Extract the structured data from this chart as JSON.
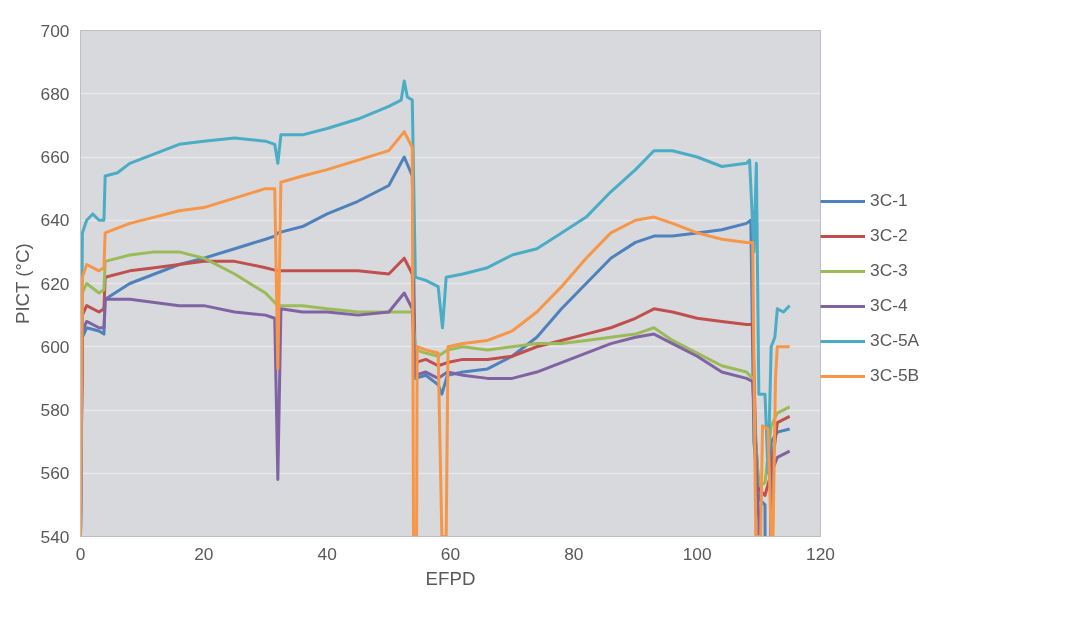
{
  "chart_data": {
    "type": "line",
    "xlabel": "EFPD",
    "ylabel": "PICT (°C)",
    "xlim": [
      0,
      120
    ],
    "ylim": [
      540,
      700
    ],
    "xticks": [
      0,
      20,
      40,
      60,
      80,
      100,
      120
    ],
    "yticks": [
      540,
      560,
      580,
      600,
      620,
      640,
      660,
      680,
      700
    ],
    "grid": "y",
    "legend": "right",
    "line_style": "solid",
    "marker": "none",
    "series": [
      {
        "name": "3C-1",
        "color": "#4f81bd",
        "x": [
          0,
          0.3,
          1,
          3,
          3.8,
          4,
          8,
          12,
          16,
          20,
          25,
          30,
          31.5,
          32,
          36,
          40,
          45,
          50,
          52.5,
          53.8,
          54.3,
          56,
          58,
          58.6,
          59.5,
          62,
          66,
          70,
          74,
          78,
          82,
          86,
          90,
          93,
          96,
          100,
          104,
          108,
          108.7,
          109.2,
          110,
          111,
          111.5,
          112,
          113,
          115
        ],
        "values": [
          540,
          603,
          606,
          605,
          604,
          615,
          620,
          623,
          626,
          628,
          631,
          634,
          635,
          636,
          638,
          642,
          646,
          651,
          660,
          654,
          590,
          591,
          588,
          585,
          591,
          592,
          593,
          597,
          603,
          612,
          620,
          628,
          633,
          635,
          635,
          636,
          637,
          639,
          640,
          570,
          552,
          550,
          null,
          570,
          573,
          574
        ]
      },
      {
        "name": "3C-2",
        "color": "#c0504d",
        "x": [
          0,
          0.3,
          1,
          3,
          3.8,
          4,
          8,
          12,
          16,
          20,
          25,
          30,
          32,
          36,
          40,
          45,
          50,
          52.5,
          53.8,
          54.3,
          56,
          58,
          59.5,
          62,
          66,
          70,
          74,
          78,
          82,
          86,
          90,
          93,
          96,
          100,
          104,
          108,
          109,
          109.5,
          110,
          111,
          112,
          113,
          115
        ],
        "values": [
          540,
          610,
          613,
          611,
          612,
          622,
          624,
          625,
          626,
          627,
          627,
          625,
          624,
          624,
          624,
          624,
          623,
          628,
          623,
          595,
          596,
          594,
          595,
          596,
          596,
          597,
          600,
          602,
          604,
          606,
          609,
          612,
          611,
          609,
          608,
          607,
          607,
          570,
          555,
          553,
          560,
          576,
          578
        ]
      },
      {
        "name": "3C-3",
        "color": "#9bbb59",
        "x": [
          0,
          0.3,
          1,
          3,
          3.8,
          4,
          8,
          12,
          16,
          20,
          25,
          30,
          32,
          36,
          40,
          45,
          50,
          53.8,
          54.3,
          56,
          58,
          59.5,
          62,
          66,
          70,
          74,
          78,
          82,
          86,
          90,
          93,
          96,
          100,
          104,
          108,
          109,
          109.5,
          110,
          111,
          112,
          113,
          115
        ],
        "values": [
          540,
          617,
          620,
          617,
          618,
          627,
          629,
          630,
          630,
          628,
          623,
          617,
          613,
          613,
          612,
          611,
          611,
          611,
          599,
          598,
          597,
          599,
          600,
          599,
          600,
          601,
          601,
          602,
          603,
          604,
          606,
          602,
          598,
          594,
          592,
          590,
          570,
          556,
          557,
          575,
          579,
          581
        ]
      },
      {
        "name": "3C-4",
        "color": "#8064a2",
        "x": [
          0,
          0.3,
          1,
          3,
          3.8,
          4,
          8,
          12,
          16,
          20,
          25,
          30,
          31.5,
          32,
          32.5,
          36,
          40,
          45,
          50,
          52.5,
          53.8,
          54.3,
          56,
          58,
          59.5,
          62,
          66,
          70,
          74,
          78,
          82,
          86,
          90,
          93,
          96,
          100,
          104,
          108,
          109,
          109.5,
          110,
          111,
          112,
          113,
          115
        ],
        "values": [
          540,
          605,
          608,
          606,
          606,
          615,
          615,
          614,
          613,
          613,
          611,
          610,
          609,
          558,
          612,
          611,
          611,
          610,
          611,
          617,
          612,
          591,
          592,
          590,
          592,
          591,
          590,
          590,
          592,
          595,
          598,
          601,
          603,
          604,
          601,
          597,
          592,
          590,
          589,
          568,
          545,
          null,
          560,
          565,
          567
        ]
      },
      {
        "name": "3C-5A",
        "color": "#4bacc6",
        "x": [
          0,
          0.3,
          1,
          2,
          3,
          3.8,
          4,
          6,
          8,
          12,
          16,
          20,
          25,
          30,
          31.5,
          32,
          32.5,
          36,
          40,
          45,
          50,
          52,
          52.5,
          53,
          53.8,
          54.3,
          56,
          58,
          58.7,
          59.3,
          62,
          66,
          70,
          74,
          78,
          82,
          86,
          90,
          93,
          96,
          100,
          104,
          108,
          108.5,
          109.2,
          109.6,
          110,
          111,
          111.5,
          112,
          112.6,
          113,
          114,
          115
        ],
        "values": [
          540,
          636,
          640,
          642,
          640,
          640,
          654,
          655,
          658,
          661,
          664,
          665,
          666,
          665,
          664,
          658,
          667,
          667,
          669,
          672,
          676,
          678,
          684,
          679,
          678,
          622,
          621,
          619,
          606,
          622,
          623,
          625,
          629,
          631,
          636,
          641,
          649,
          656,
          662,
          662,
          660,
          657,
          658,
          659,
          630,
          658,
          585,
          585,
          560,
          600,
          603,
          612,
          611,
          613
        ]
      },
      {
        "name": "3C-5B",
        "color": "#f79646",
        "x": [
          0,
          0.3,
          1,
          3,
          3.8,
          4,
          8,
          12,
          16,
          20,
          25,
          30,
          31.5,
          32,
          32.5,
          36,
          40,
          45,
          50,
          52.5,
          53.8,
          54,
          54.5,
          54.6,
          56,
          58,
          58.6,
          59.3,
          59.6,
          62,
          66,
          70,
          74,
          78,
          82,
          86,
          90,
          93,
          96,
          100,
          104,
          108,
          109,
          109.5,
          110.3,
          110.6,
          111.5,
          112,
          112.3,
          112.7,
          113,
          115
        ],
        "values": [
          540,
          622,
          626,
          624,
          625,
          636,
          639,
          641,
          643,
          644,
          647,
          650,
          650,
          593,
          652,
          654,
          656,
          659,
          662,
          668,
          663,
          540,
          540,
          600,
          599,
          598,
          540,
          540,
          600,
          601,
          602,
          605,
          611,
          619,
          628,
          636,
          640,
          641,
          639,
          636,
          634,
          633,
          633,
          540,
          540,
          575,
          574,
          540,
          540,
          590,
          600,
          600
        ]
      }
    ]
  }
}
